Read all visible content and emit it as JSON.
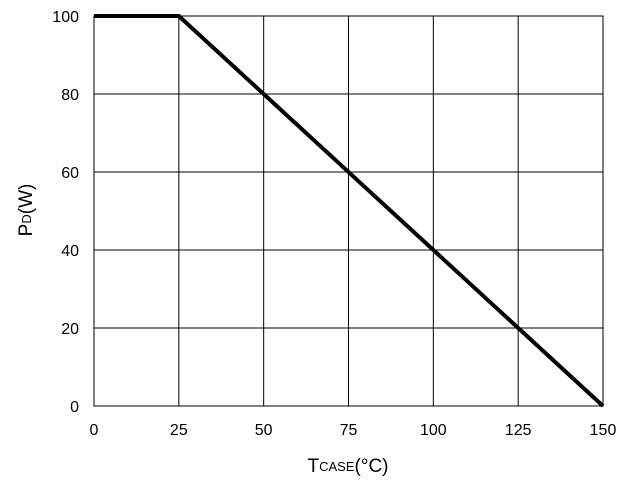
{
  "chart_data": {
    "type": "line",
    "xlabel_main": "T",
    "xlabel_sub": "CASE",
    "xlabel_unit": "(°C)",
    "ylabel_main": "P",
    "ylabel_sub": "D",
    "ylabel_unit": "(W)",
    "xlim": [
      0,
      150
    ],
    "ylim": [
      0,
      100
    ],
    "x_ticks": [
      0,
      25,
      50,
      75,
      100,
      125,
      150
    ],
    "y_ticks": [
      0,
      20,
      40,
      60,
      80,
      100
    ],
    "grid": true,
    "series": [
      {
        "x": [
          0,
          25,
          150
        ],
        "y": [
          100,
          100,
          0
        ]
      }
    ]
  },
  "colors": {
    "line": "#000000",
    "grid": "#000000",
    "background": "#ffffff"
  }
}
